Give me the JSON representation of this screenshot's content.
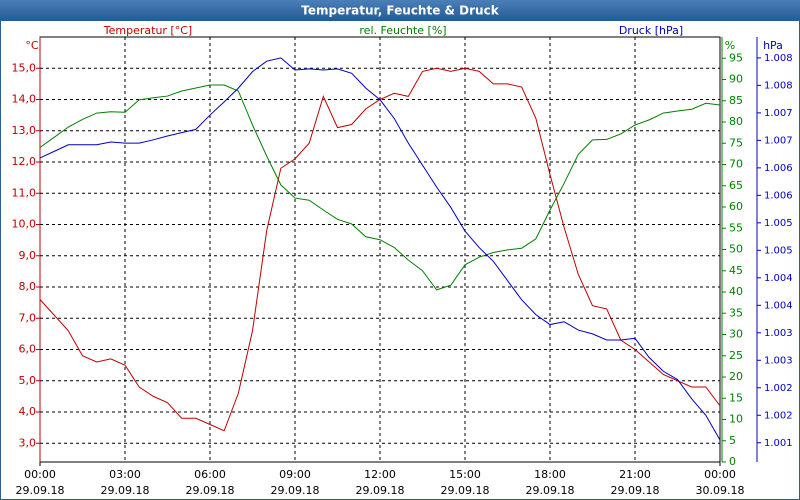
{
  "chart_data": {
    "type": "line",
    "title": "Temperatur, Feuchte & Druck",
    "ylabel": "Temperatur [°C]",
    "yunit": "°C",
    "y2label": "rel. Feuchte [%]",
    "y2unit": "%",
    "y3label": "Druck [hPa]",
    "y3unit": "hPa",
    "grid": true,
    "x": [
      0,
      0.5,
      1,
      1.5,
      2,
      2.5,
      3,
      3.5,
      4,
      4.5,
      5,
      5.5,
      6,
      6.5,
      7,
      7.5,
      8,
      8.5,
      9,
      9.5,
      10,
      10.5,
      11,
      11.5,
      12,
      12.5,
      13,
      13.5,
      14,
      14.5,
      15,
      15.5,
      16,
      16.5,
      17,
      17.5,
      18,
      18.5,
      19,
      19.5,
      20,
      20.5,
      21,
      21.5,
      22,
      22.5,
      23,
      23.5,
      24
    ],
    "xlim": [
      0,
      24
    ],
    "xticks": [
      {
        "value": 0,
        "label": "00:00"
      },
      {
        "value": 3,
        "label": "03:00"
      },
      {
        "value": 6,
        "label": "06:00"
      },
      {
        "value": 9,
        "label": "09:00"
      },
      {
        "value": 12,
        "label": "12:00"
      },
      {
        "value": 15,
        "label": "15:00"
      },
      {
        "value": 18,
        "label": "18:00"
      },
      {
        "value": 21,
        "label": "21:00"
      },
      {
        "value": 24,
        "label": "00:00"
      }
    ],
    "xtick_dates": [
      "29.09.18",
      "29.09.18",
      "29.09.18",
      "29.09.18",
      "29.09.18",
      "29.09.18",
      "29.09.18",
      "29.09.18",
      "30.09.18"
    ],
    "ylim": [
      2.4,
      16.0
    ],
    "yticks": [
      {
        "value": 3,
        "label": "3,0"
      },
      {
        "value": 4,
        "label": "4,0"
      },
      {
        "value": 5,
        "label": "5,0"
      },
      {
        "value": 6,
        "label": "6,0"
      },
      {
        "value": 7,
        "label": "7,0"
      },
      {
        "value": 8,
        "label": "8,0"
      },
      {
        "value": 9,
        "label": "9,0"
      },
      {
        "value": 10,
        "label": "10,0"
      },
      {
        "value": 11,
        "label": "11,0"
      },
      {
        "value": 12,
        "label": "12,0"
      },
      {
        "value": 13,
        "label": "13,0"
      },
      {
        "value": 14,
        "label": "14,0"
      },
      {
        "value": 15,
        "label": "15,0"
      }
    ],
    "y2lim": [
      0,
      100
    ],
    "y2ticks": [
      0,
      5,
      10,
      15,
      20,
      25,
      30,
      35,
      40,
      45,
      50,
      55,
      60,
      65,
      70,
      75,
      80,
      85,
      90,
      95
    ],
    "y3lim": [
      1000.65,
      1008.38
    ],
    "y3ticks": [
      {
        "value": 1001,
        "label": "1.001"
      },
      {
        "value": 1001.5,
        "label": "1.002"
      },
      {
        "value": 1002,
        "label": "1.002"
      },
      {
        "value": 1002.5,
        "label": "1.003"
      },
      {
        "value": 1003,
        "label": "1.003"
      },
      {
        "value": 1003.5,
        "label": "1.004"
      },
      {
        "value": 1004,
        "label": "1.004"
      },
      {
        "value": 1004.5,
        "label": "1.005"
      },
      {
        "value": 1005,
        "label": "1.005"
      },
      {
        "value": 1005.5,
        "label": "1.006"
      },
      {
        "value": 1006,
        "label": "1.006"
      },
      {
        "value": 1006.5,
        "label": "1.007"
      },
      {
        "value": 1007,
        "label": "1.007"
      },
      {
        "value": 1007.5,
        "label": "1.008"
      },
      {
        "value": 1008,
        "label": "1.008"
      }
    ],
    "series": [
      {
        "name": "Temperatur",
        "color": "#c00000",
        "axis": "y",
        "values": [
          7.6,
          7.1,
          6.6,
          5.8,
          5.6,
          5.7,
          5.5,
          4.8,
          4.5,
          4.3,
          3.8,
          3.8,
          3.6,
          3.4,
          4.6,
          6.6,
          9.8,
          11.8,
          12.1,
          12.6,
          14.1,
          13.1,
          13.2,
          13.7,
          14.0,
          14.2,
          14.1,
          14.9,
          15.0,
          14.9,
          15.0,
          14.9,
          14.5,
          14.5,
          14.4,
          13.4,
          11.6,
          9.9,
          8.4,
          7.4,
          7.3,
          6.3,
          6.0,
          5.6,
          5.2,
          5.0,
          4.8,
          4.8,
          4.2
        ]
      },
      {
        "name": "rel. Feuchte",
        "color": "#008000",
        "axis": "y2",
        "values": [
          74,
          76.4,
          78.8,
          80.6,
          82.1,
          82.4,
          82.3,
          85.2,
          85.7,
          86.1,
          87.3,
          88,
          88.7,
          88.7,
          87.3,
          79.3,
          72,
          65.2,
          62.1,
          61.6,
          59.3,
          57.1,
          56,
          53,
          52.3,
          50.5,
          47.5,
          45,
          40.5,
          41.6,
          46.4,
          48.2,
          49.3,
          49.9,
          50.3,
          52.5,
          59.3,
          65.6,
          72.4,
          75.8,
          75.9,
          77.2,
          79.3,
          80.5,
          82.1,
          82.6,
          83,
          84.4,
          84
        ]
      },
      {
        "name": "Druck",
        "color": "#0000c0",
        "axis": "y3",
        "values": [
          1006.18,
          1006.3,
          1006.42,
          1006.42,
          1006.42,
          1006.47,
          1006.45,
          1006.45,
          1006.51,
          1006.58,
          1006.64,
          1006.7,
          1006.96,
          1007.2,
          1007.45,
          1007.75,
          1007.94,
          1008.0,
          1007.78,
          1007.8,
          1007.78,
          1007.8,
          1007.72,
          1007.45,
          1007.24,
          1006.9,
          1006.45,
          1006.05,
          1005.65,
          1005.28,
          1004.85,
          1004.55,
          1004.3,
          1003.95,
          1003.6,
          1003.33,
          1003.15,
          1003.2,
          1003.05,
          1002.98,
          1002.87,
          1002.87,
          1002.9,
          1002.55,
          1002.3,
          1002.15,
          1001.8,
          1001.5,
          1001.05
        ]
      }
    ]
  }
}
